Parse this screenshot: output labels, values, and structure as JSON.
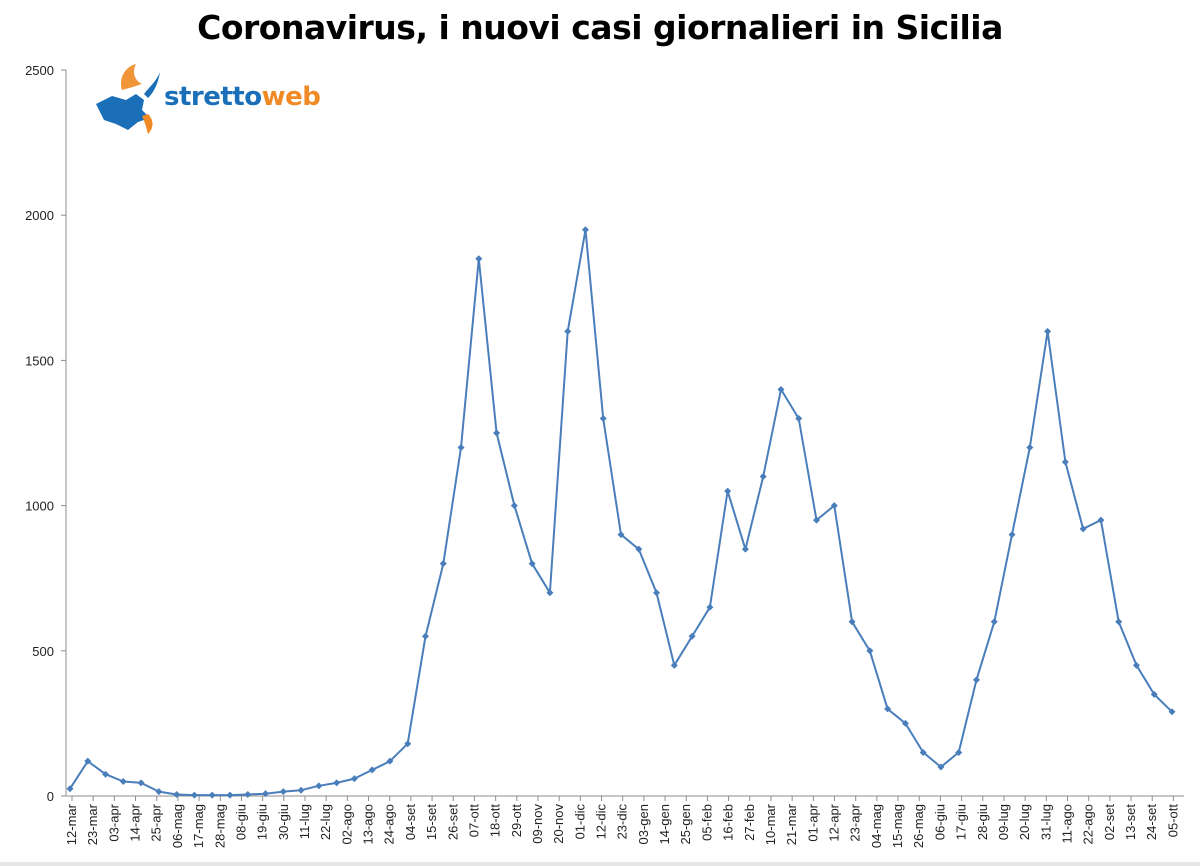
{
  "title": "Coronavirus, i nuovi casi giornalieri in Sicilia",
  "logo": {
    "part1": "stretto",
    "part2": "web"
  },
  "colors": {
    "line": "#4a7ebb",
    "axis": "#8c8c8c",
    "logo_blue": "#1a6fb8",
    "logo_orange": "#f08a24"
  },
  "chart_data": {
    "type": "line",
    "title": "Coronavirus, i nuovi casi giornalieri in Sicilia",
    "xlabel": "",
    "ylabel": "",
    "ylim": [
      0,
      2500
    ],
    "yticks": [
      0,
      500,
      1000,
      1500,
      2000,
      2500
    ],
    "grid": false,
    "legend": "none",
    "x_tick_labels": [
      "12-mar",
      "23-mar",
      "03-apr",
      "14-apr",
      "25-apr",
      "06-mag",
      "17-mag",
      "28-mag",
      "08-giu",
      "19-giu",
      "30-giu",
      "11-lug",
      "22-lug",
      "02-ago",
      "13-ago",
      "24-ago",
      "04-set",
      "15-set",
      "26-set",
      "07-ott",
      "18-ott",
      "29-ott",
      "09-nov",
      "20-nov",
      "01-dic",
      "12-dic",
      "23-dic",
      "03-gen",
      "14-gen",
      "25-gen",
      "05-feb",
      "16-feb",
      "27-feb",
      "10-mar",
      "21-mar",
      "01-apr",
      "12-apr",
      "23-apr",
      "04-mag",
      "15-mag",
      "26-mag",
      "06-giu",
      "17-giu",
      "28-giu",
      "09-lug",
      "20-lug",
      "31-lug",
      "11-ago",
      "22-ago",
      "02-set",
      "13-set",
      "24-set",
      "05-ott"
    ],
    "series": [
      {
        "values": [
          25,
          120,
          75,
          50,
          45,
          15,
          5,
          3,
          3,
          3,
          5,
          8,
          15,
          20,
          35,
          45,
          60,
          90,
          120,
          180,
          550,
          800,
          1200,
          1850,
          1250,
          1000,
          800,
          700,
          1600,
          1950,
          1300,
          900,
          850,
          700,
          450,
          550,
          650,
          1050,
          850,
          1100,
          1400,
          1300,
          950,
          1000,
          600,
          500,
          300,
          250,
          150,
          100,
          150,
          400,
          600,
          900,
          1200,
          1600,
          1150,
          920,
          950,
          600,
          450,
          350,
          290
        ]
      }
    ]
  }
}
